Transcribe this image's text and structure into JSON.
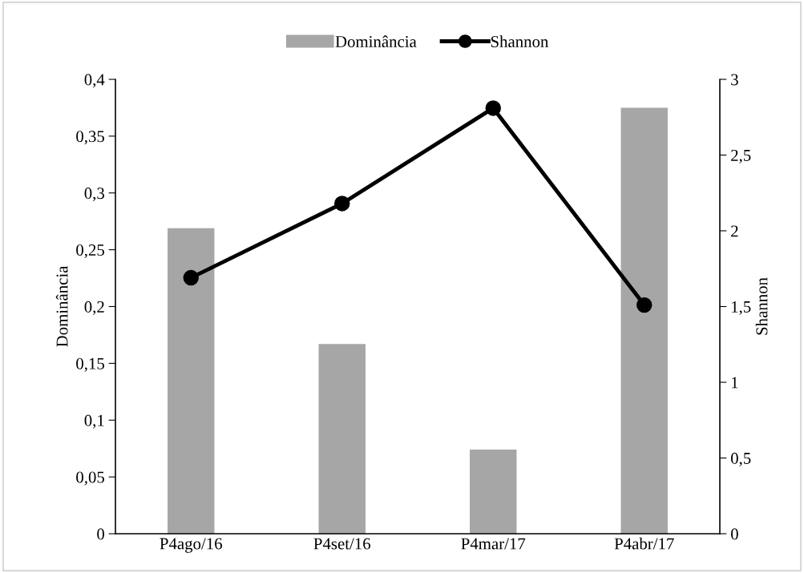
{
  "chart_data": {
    "type": "bar",
    "categories": [
      "P4ago/16",
      "P4set/16",
      "P4mar/17",
      "P4abr/17"
    ],
    "series": [
      {
        "name": "Dominância",
        "color": "#a6a6a6",
        "values": [
          0.269,
          0.167,
          0.074,
          0.375
        ]
      },
      {
        "name": "Shannon",
        "type": "line",
        "axis": "y2",
        "color": "#000000",
        "values": [
          1.69,
          2.18,
          2.81,
          1.51
        ]
      }
    ],
    "ylabel": "Dominância",
    "y2label": "Shannon",
    "ylim": [
      0,
      0.4
    ],
    "yticks": [
      {
        "value": 0,
        "label": "0"
      },
      {
        "value": 0.05,
        "label": "0,05"
      },
      {
        "value": 0.1,
        "label": "0,1"
      },
      {
        "value": 0.15,
        "label": "0,15"
      },
      {
        "value": 0.2,
        "label": "0,2"
      },
      {
        "value": 0.25,
        "label": "0,25"
      },
      {
        "value": 0.3,
        "label": "0,3"
      },
      {
        "value": 0.35,
        "label": "0,35"
      },
      {
        "value": 0.4,
        "label": "0,4"
      }
    ],
    "y2lim": [
      0,
      3
    ],
    "y2ticks": [
      {
        "value": 0,
        "label": "0"
      },
      {
        "value": 0.5,
        "label": "0,5"
      },
      {
        "value": 1,
        "label": "1"
      },
      {
        "value": 1.5,
        "label": "1,5"
      },
      {
        "value": 2,
        "label": "2"
      },
      {
        "value": 2.5,
        "label": "2,5"
      },
      {
        "value": 3,
        "label": "3"
      }
    ],
    "legend": "top",
    "marker": "circle",
    "line_style": "solid",
    "grid": false
  }
}
